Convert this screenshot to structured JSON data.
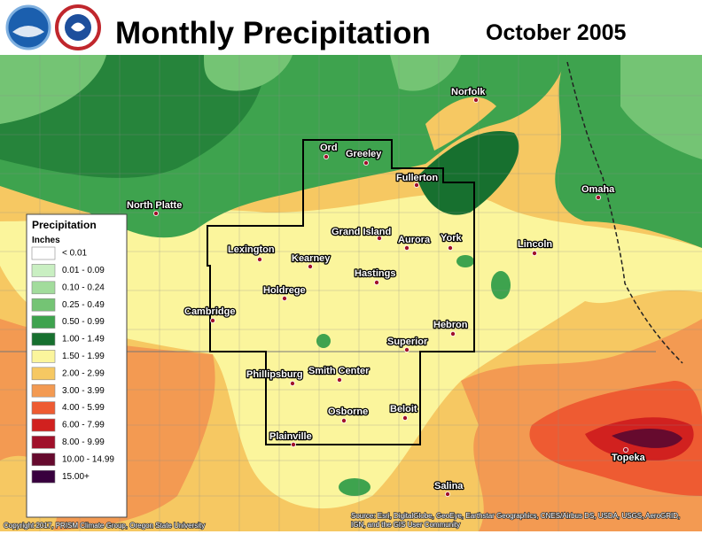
{
  "header": {
    "title": "Monthly Precipitation",
    "date": "October 2005"
  },
  "legend": {
    "title": "Precipitation",
    "units": "Inches",
    "items": [
      {
        "label": "< 0.01",
        "color": "#ffffff"
      },
      {
        "label": "0.01 - 0.09",
        "color": "#c9efc2"
      },
      {
        "label": "0.10 - 0.24",
        "color": "#a2dc9c"
      },
      {
        "label": "0.25 - 0.49",
        "color": "#74c474"
      },
      {
        "label": "0.50 - 0.99",
        "color": "#3ea34e"
      },
      {
        "label": "1.00 - 1.49",
        "color": "#17702f"
      },
      {
        "label": "1.50 - 1.99",
        "color": "#fbf59c"
      },
      {
        "label": "2.00 - 2.99",
        "color": "#f6c862"
      },
      {
        "label": "3.00 - 3.99",
        "color": "#f39a52"
      },
      {
        "label": "4.00 - 5.99",
        "color": "#ee5b32"
      },
      {
        "label": "6.00 - 7.99",
        "color": "#d1211f"
      },
      {
        "label": "8.00 - 9.99",
        "color": "#a0102a"
      },
      {
        "label": "10.00 - 14.99",
        "color": "#660a2e"
      },
      {
        "label": "15.00+",
        "color": "#38003e"
      }
    ]
  },
  "cities": [
    "Norfolk",
    "Ord",
    "Greeley",
    "Fullerton",
    "Omaha",
    "North Platte",
    "Grand Island",
    "Aurora",
    "York",
    "Lincoln",
    "Lexington",
    "Kearney",
    "Hastings",
    "Holdrege",
    "Cambridge",
    "Hebron",
    "Superior",
    "Phillipsburg",
    "Smith Center",
    "Beloit",
    "Osborne",
    "Plainville",
    "Topeka",
    "Salina"
  ],
  "credits": {
    "copyright": "Copyright 2017, PRISM Climate Group, Oregon State University",
    "source": [
      "Source: Esri, DigitalGlobe, GeoEye, Earthstar Geographics, CNES/Airbus DS, USDA, USGS, AeroGRID,",
      "IGN, and the GIS User Community"
    ]
  }
}
